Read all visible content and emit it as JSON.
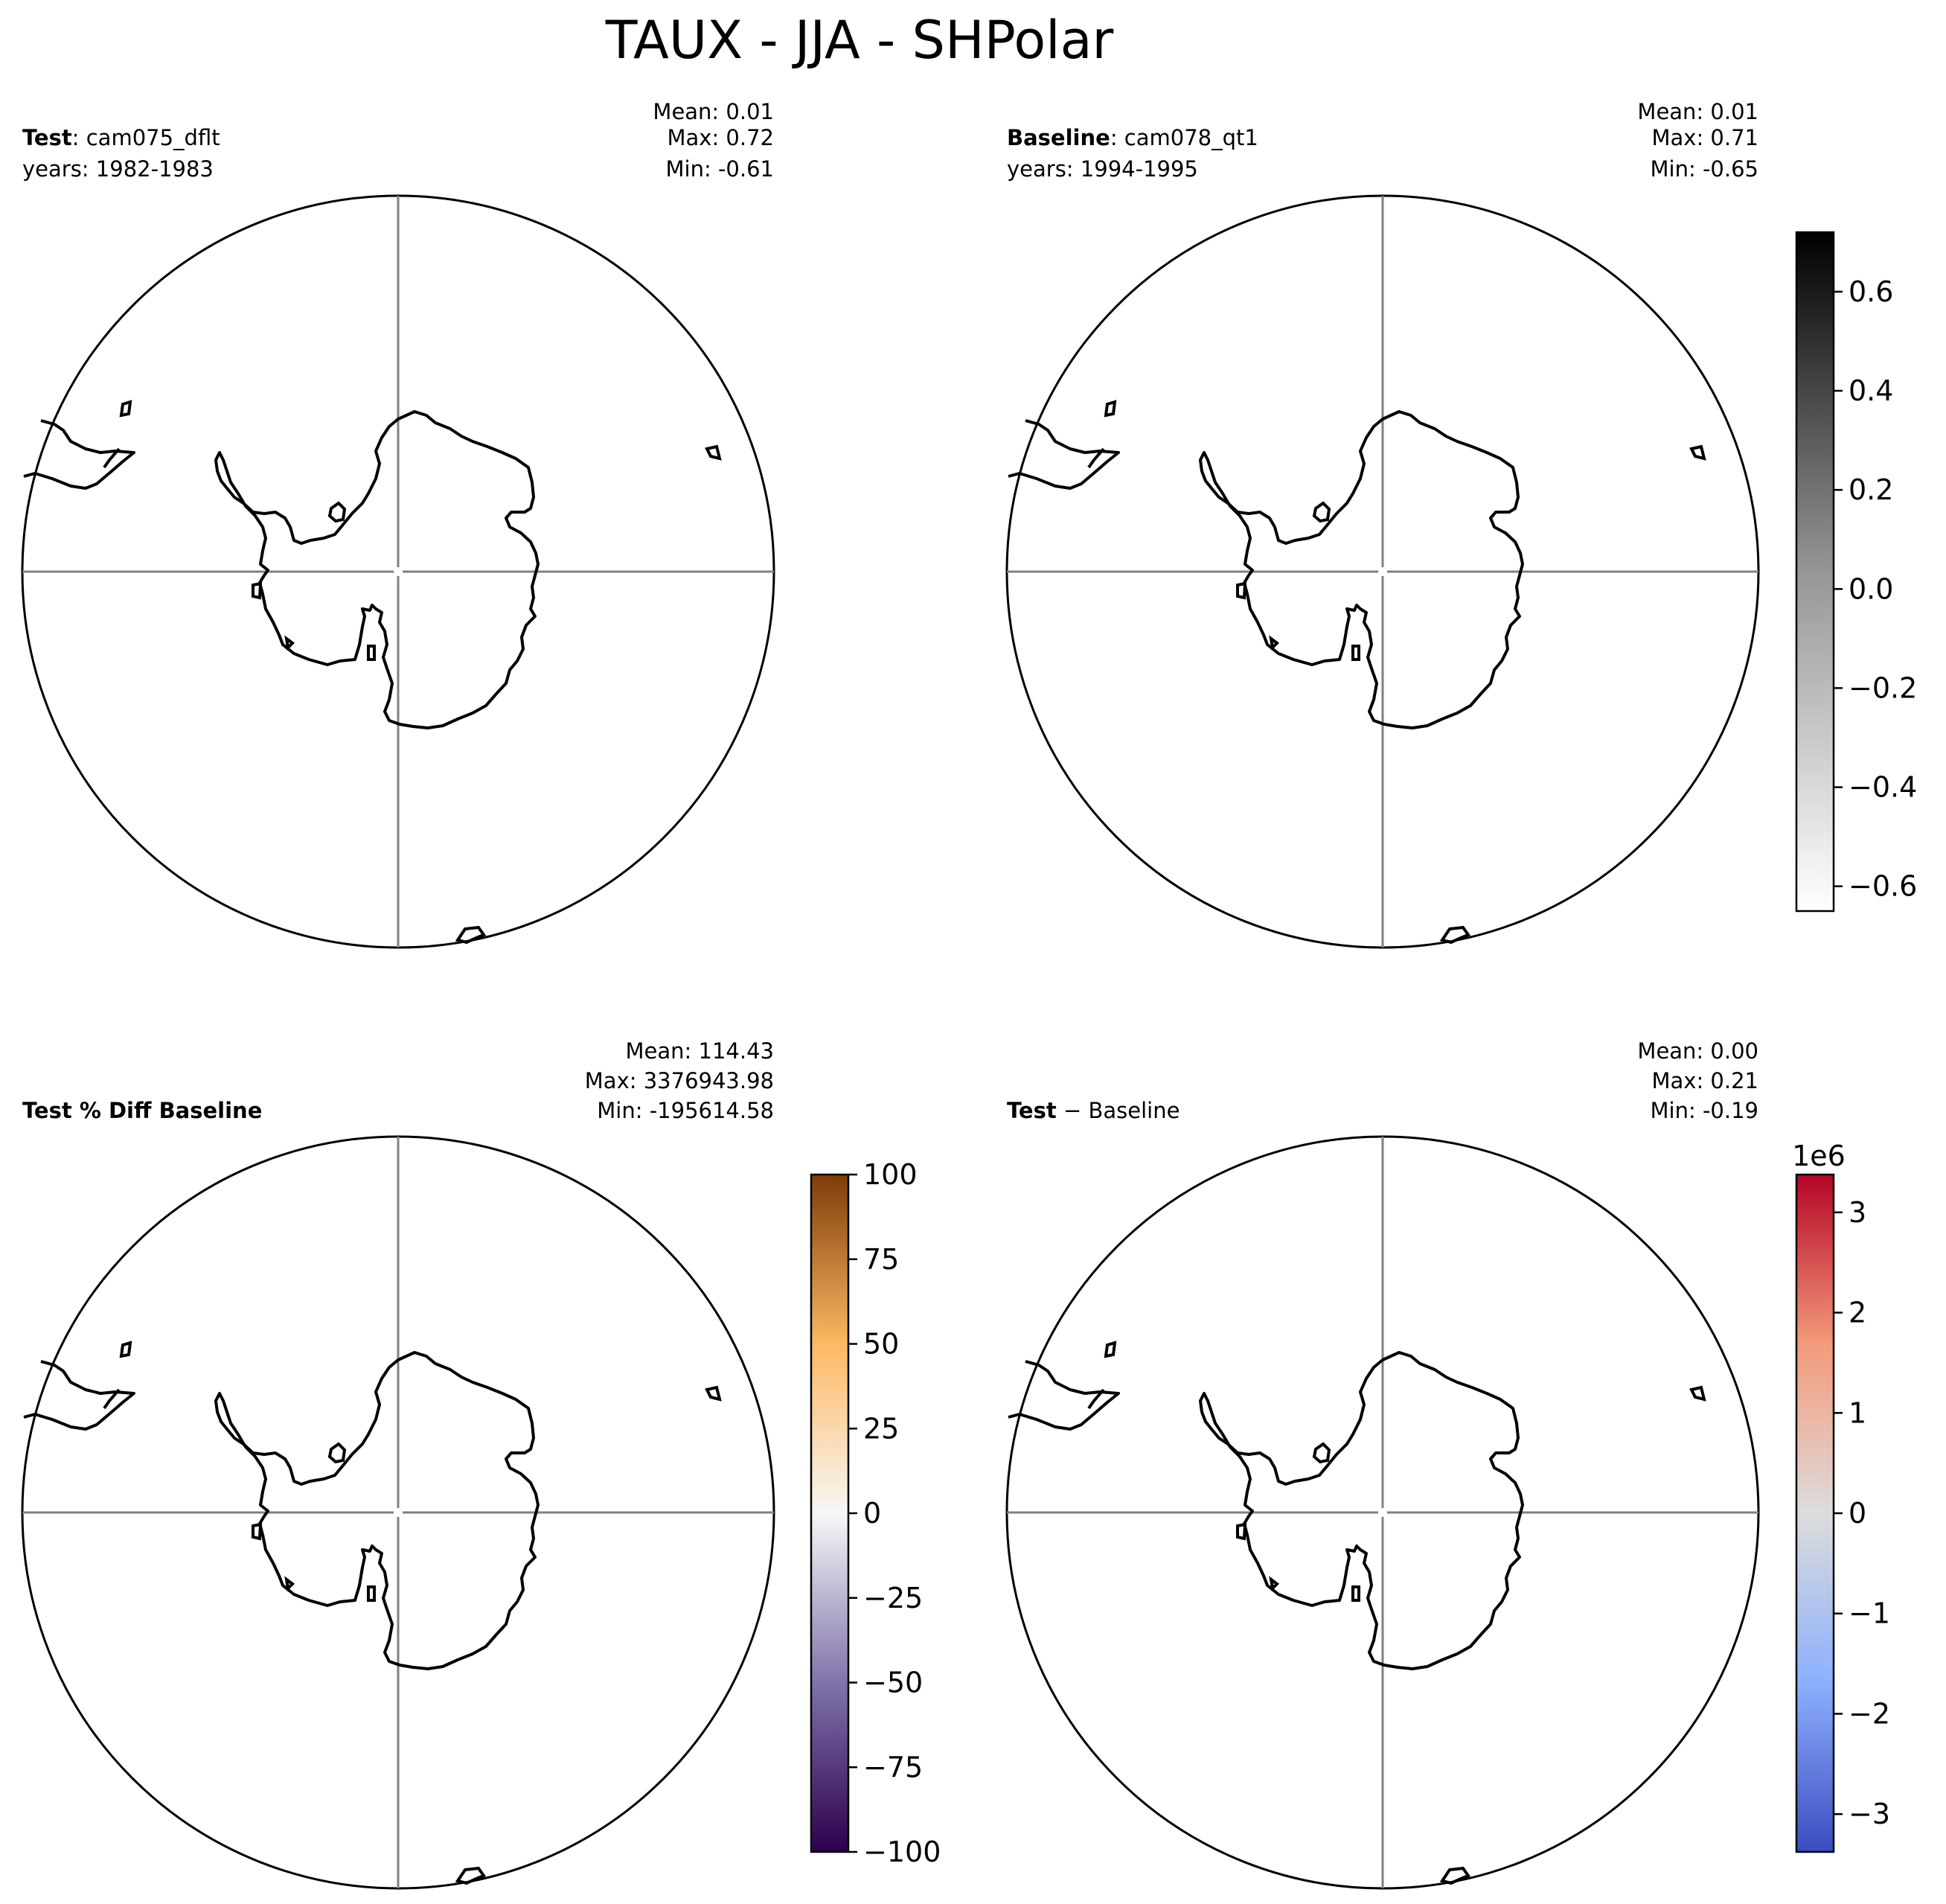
{
  "figure": {
    "title": "TAUX - JJA - SHPolar"
  },
  "chart_data": [
    {
      "type": "map",
      "panel": "test",
      "label_bold": "Test",
      "label_rest": ": cam075_dflt",
      "years": "years: 1982-1983",
      "stats": {
        "mean": "Mean:  0.01",
        "max": "Max:  0.72",
        "min": "Min: -0.61"
      }
    },
    {
      "type": "map",
      "panel": "baseline",
      "label_bold": "Baseline",
      "label_rest": ": cam078_qt1",
      "years": "years: 1994-1995",
      "stats": {
        "mean": "Mean:  0.01",
        "max": "Max:  0.71",
        "min": "Min: -0.65"
      },
      "colorbar": {
        "colormap": "Greys",
        "range": [
          -0.65,
          0.72
        ],
        "ticks": [
          -0.6,
          -0.4,
          -0.2,
          0.0,
          0.2,
          0.4,
          0.6
        ],
        "tick_labels": [
          "−0.6",
          "−0.4",
          "−0.2",
          "0.0",
          "0.2",
          "0.4",
          "0.6"
        ],
        "colors": [
          "#ffffff",
          "#000000"
        ]
      }
    },
    {
      "type": "map",
      "panel": "pct-diff",
      "label_bold": "Test % Diff Baseline",
      "label_rest": "",
      "years": "",
      "stats": {
        "mean": "Mean: 114.43",
        "max": "Max: 3376943.98",
        "min": "Min: -195614.58"
      },
      "colorbar": {
        "colormap": "PuOr_r",
        "range": [
          -100,
          100
        ],
        "ticks": [
          -100,
          -75,
          -50,
          -25,
          0,
          25,
          50,
          75,
          100
        ],
        "tick_labels": [
          "−100",
          "−75",
          "−50",
          "−25",
          "0",
          "25",
          "50",
          "75",
          "100"
        ],
        "colors": [
          "#2d004b",
          "#8073ac",
          "#f7f7f7",
          "#fdb863",
          "#7f3b08"
        ]
      }
    },
    {
      "type": "map",
      "panel": "diff",
      "label_bold": "Test",
      "label_rest": " − Baseline",
      "years": "",
      "stats": {
        "mean": "Mean:  0.00",
        "max": "Max:  0.21",
        "min": "Min: -0.19"
      },
      "colorbar": {
        "colormap": "coolwarm",
        "range": [
          -3.376943,
          3.376943
        ],
        "ticks": [
          -3,
          -2,
          -1,
          0,
          1,
          2,
          3
        ],
        "tick_labels": [
          "−3",
          "−2",
          "−1",
          "0",
          "1",
          "2",
          "3"
        ],
        "offset_label": "1e6",
        "colors": [
          "#3b4cc0",
          "#8db0fe",
          "#dddcdc",
          "#f49a7b",
          "#b40426"
        ]
      }
    }
  ]
}
